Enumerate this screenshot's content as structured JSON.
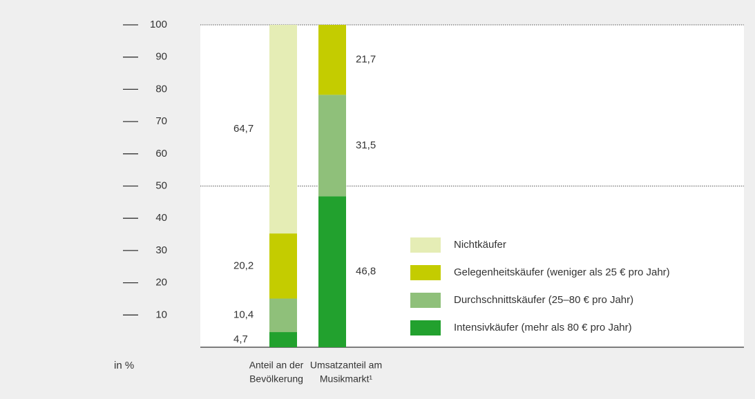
{
  "chart_data": {
    "type": "stacked_bar",
    "categories": [
      [
        "Anteil an der",
        "Bevölkerung"
      ],
      [
        "Umsatzanteil am",
        "Musikmarkt¹"
      ]
    ],
    "y_label": "in %",
    "series": [
      {
        "name": "Intensivkäufer (mehr als 80 € pro Jahr)",
        "color": "#22a12e",
        "values": [
          4.7,
          46.8
        ],
        "value_labels": [
          "4,7",
          "46,8"
        ]
      },
      {
        "name": "Durchschnittskäufer (25–80 € pro Jahr)",
        "color": "#8fc07a",
        "values": [
          10.4,
          31.5
        ],
        "value_labels": [
          "10,4",
          "31,5"
        ]
      },
      {
        "name": "Gelegenheitskäufer (weniger als 25 € pro Jahr)",
        "color": "#c4cc00",
        "values": [
          20.2,
          21.7
        ],
        "value_labels": [
          "20,2",
          "21,7"
        ]
      },
      {
        "name": "Nichtkäufer",
        "color": "#e5edb5",
        "values": [
          64.7,
          null
        ],
        "value_labels": [
          "64,7",
          null
        ]
      }
    ],
    "ylim": [
      0,
      100
    ],
    "yticks": [
      10,
      20,
      30,
      40,
      50,
      60,
      70,
      80,
      90,
      100
    ],
    "gridlines": [
      50,
      100
    ],
    "legend": "right"
  }
}
